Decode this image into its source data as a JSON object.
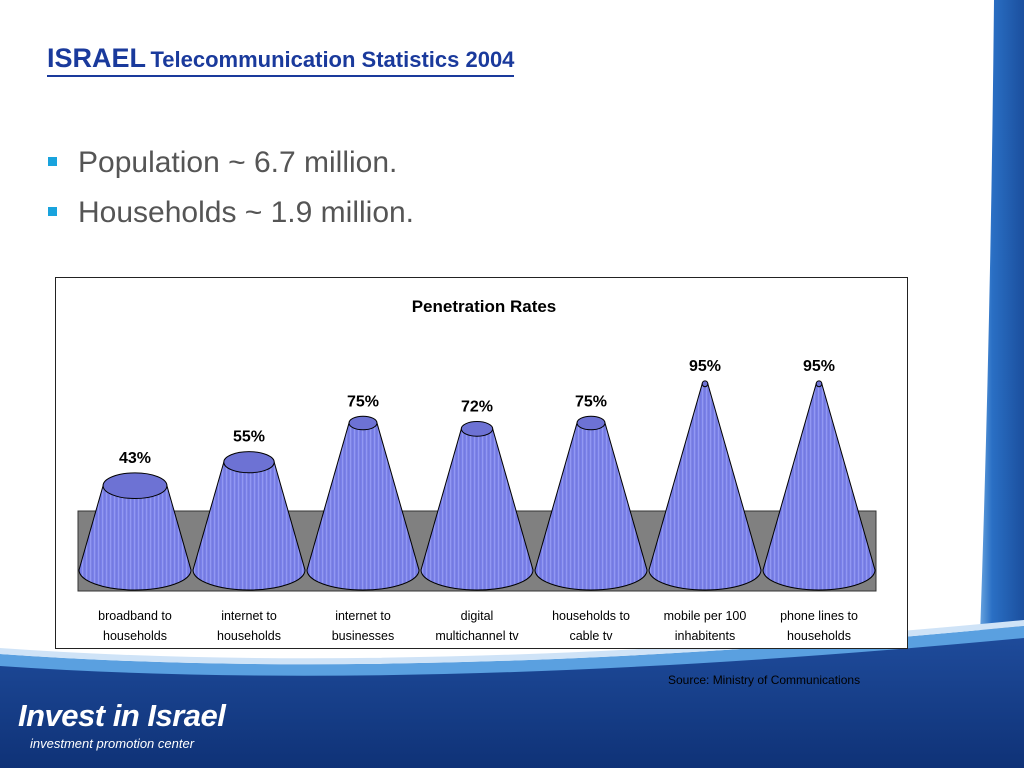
{
  "slide": {
    "title_main": "ISRAEL",
    "title_sub": "Telecommunication Statistics 2004",
    "bullets": [
      {
        "text": "Population ~ 6.7 million."
      },
      {
        "text": "Households ~ 1.9 million."
      }
    ],
    "source": "Source: Ministry of Communications",
    "logo_name": "Invest in Israel",
    "logo_tagline": "investment promotion center"
  },
  "colors": {
    "title": "#1a3a9c",
    "bullet_marker": "#19a3dd",
    "bullet_text": "#555555",
    "cone_fill": "#7f86ee",
    "cone_top": "#6d72d4",
    "floor": "#808080",
    "footer_band": "#123a85",
    "footer_stripe": "#5aa0e0"
  },
  "chart_data": {
    "type": "bar",
    "mark_shape": "cone",
    "title": "Penetration Rates",
    "categories": [
      [
        "broadband to",
        "households"
      ],
      [
        "internet to",
        "households"
      ],
      [
        "internet to",
        "businesses"
      ],
      [
        "digital",
        "multichannel  tv"
      ],
      [
        "households to",
        "cable tv"
      ],
      [
        "mobile per 100",
        "inhabitents"
      ],
      [
        "phone lines to",
        "households"
      ]
    ],
    "values": [
      43,
      55,
      75,
      72,
      75,
      95,
      95
    ],
    "data_labels": [
      "43%",
      "55%",
      "75%",
      "72%",
      "75%",
      "95%",
      "95%"
    ],
    "ylim": [
      0,
      100
    ],
    "unit": "%",
    "legend": "none",
    "grid": false
  }
}
